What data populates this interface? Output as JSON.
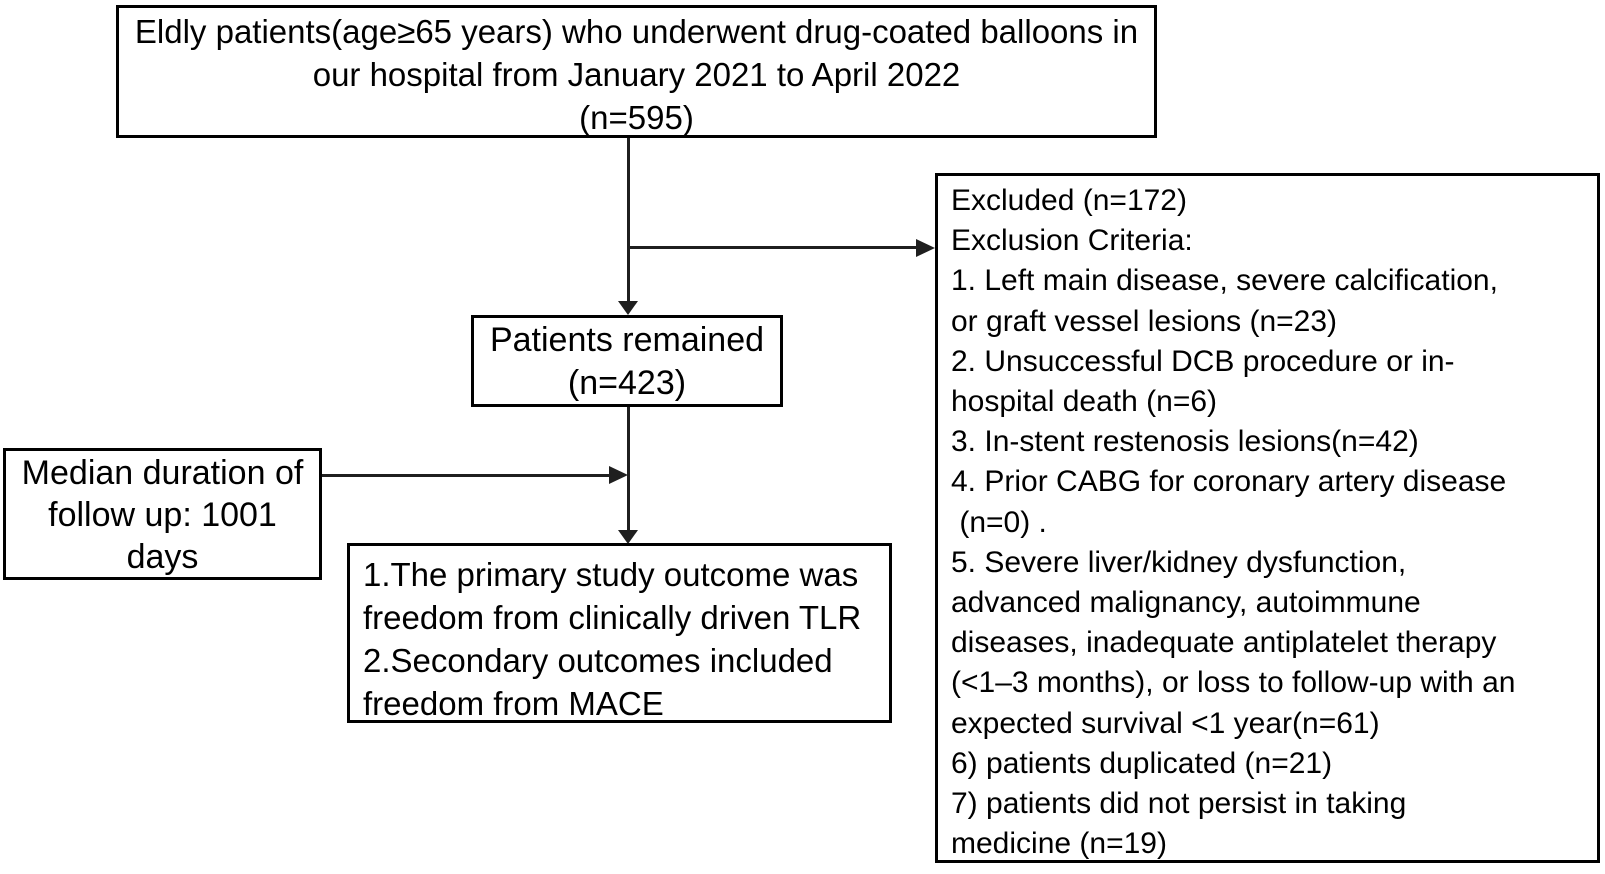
{
  "colors": {
    "background": "#ffffff",
    "text": "#000000",
    "box_border": "#000000",
    "connector": "#1f1f1f"
  },
  "boxes": {
    "enrollment": {
      "lines": [
        "Eldly patients(age≥65 years) who underwent drug-coated balloons in",
        "our hospital from January 2021 to April 2022",
        "(n=595)"
      ]
    },
    "remained": {
      "lines": [
        "Patients remained",
        "(n=423)"
      ]
    },
    "followup": {
      "lines": [
        "Median duration of",
        "follow up: 1001",
        "days"
      ]
    },
    "outcomes": {
      "lines": [
        "1.The primary study outcome was",
        "freedom from clinically driven TLR",
        "2.Secondary outcomes included",
        "freedom from MACE"
      ]
    },
    "excluded": {
      "lines": [
        "Excluded (n=172)",
        "Exclusion Criteria:",
        "1. Left main disease, severe calcification,",
        "or graft vessel lesions (n=23)",
        "2. Unsuccessful DCB procedure or in-",
        "hospital death (n=6)",
        "3. In-stent restenosis lesions(n=42)",
        "4. Prior CABG for coronary artery disease",
        " (n=0) .",
        "5. Severe liver/kidney dysfunction,",
        "advanced malignancy, autoimmune",
        "diseases, inadequate antiplatelet therapy",
        "(<1–3 months), or loss to follow-up with an",
        "expected survival <1 year(n=61)",
        "6) patients duplicated (n=21)",
        "7) patients did not persist in taking",
        "medicine (n=19)"
      ]
    }
  }
}
